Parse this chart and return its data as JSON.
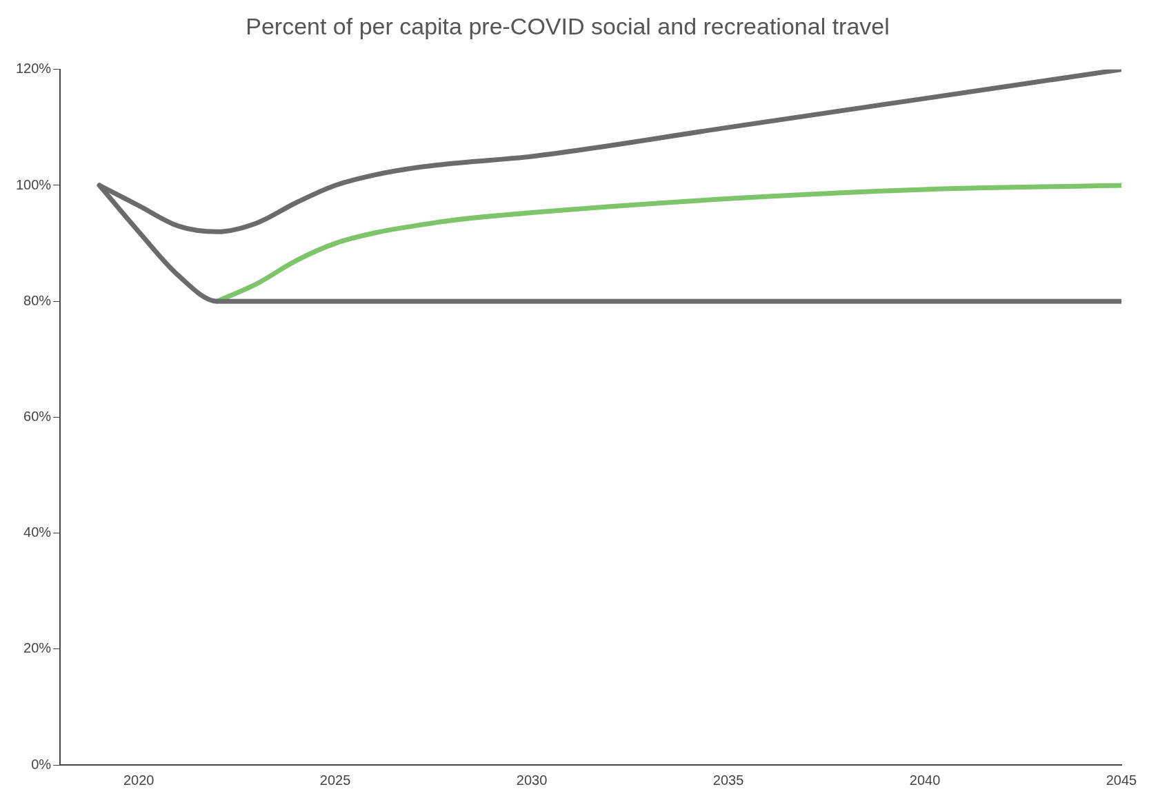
{
  "chart_data": {
    "type": "line",
    "title": "Percent of per capita pre-COVID social and recreational travel",
    "xlim": [
      2018,
      2045
    ],
    "xticks": [
      2020,
      2025,
      2030,
      2035,
      2040,
      2045
    ],
    "ylim": [
      0,
      120
    ],
    "yticks": [
      {
        "value": 0,
        "label": "0%"
      },
      {
        "value": 20,
        "label": "20%"
      },
      {
        "value": 40,
        "label": "40%"
      },
      {
        "value": 60,
        "label": "60%"
      },
      {
        "value": 80,
        "label": "80%"
      },
      {
        "value": 100,
        "label": "100%"
      },
      {
        "value": 120,
        "label": "120%"
      }
    ],
    "grid": false,
    "legend": false,
    "marker": "none",
    "line_style": "solid",
    "series": [
      {
        "color": "#6b6b6b",
        "x": [
          2019,
          2020,
          2021,
          2022,
          2023,
          2024,
          2025,
          2026,
          2027,
          2028,
          2030,
          2035,
          2040,
          2045
        ],
        "values": [
          100,
          96.5,
          93,
          92,
          93.5,
          97,
          100,
          101.8,
          103,
          103.8,
          105,
          110,
          115,
          120
        ]
      },
      {
        "color": "#7dc46a",
        "x": [
          2022,
          2023,
          2024,
          2025,
          2026,
          2027,
          2028,
          2030,
          2035,
          2040,
          2045
        ],
        "values": [
          80,
          83,
          87,
          90,
          91.8,
          93,
          94,
          95.3,
          97.7,
          99.3,
          100
        ]
      },
      {
        "color": "#6b6b6b",
        "x": [
          2019,
          2020,
          2021,
          2022,
          2045
        ],
        "values": [
          100,
          92,
          84.5,
          80,
          80
        ]
      }
    ]
  }
}
